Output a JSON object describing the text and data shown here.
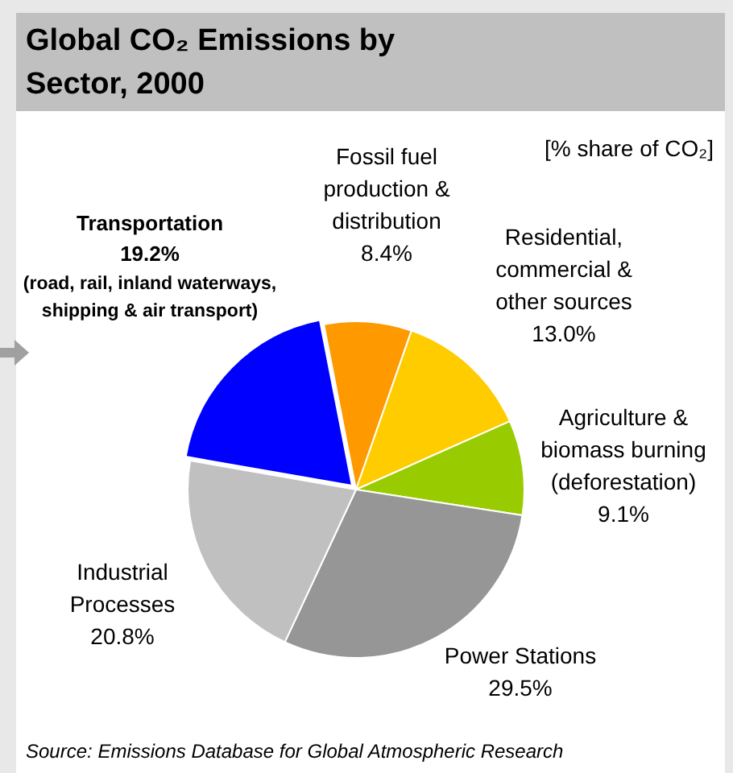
{
  "chart_data": {
    "type": "pie",
    "title": "Global CO₂ Emissions by Sector, 2000",
    "subtitle": "[% share of CO₂]",
    "categories": [
      "Fossil fuel production & distribution",
      "Residential, commercial & other sources",
      "Agriculture & biomass burning (deforestation)",
      "Power Stations",
      "Industrial Processes",
      "Transportation"
    ],
    "values": [
      8.4,
      13.0,
      9.1,
      29.5,
      20.8,
      19.2
    ],
    "value_labels": [
      "8.4%",
      "13.0%",
      "9.1%",
      "29.5%",
      "20.8%",
      "19.2%"
    ],
    "colors": [
      "#ff9900",
      "#ffcc00",
      "#99cc00",
      "#969696",
      "#c0c0c0",
      "#0000ff"
    ],
    "annotations": [
      "(road, rail, inland waterways, shipping & air transport)",
      "Source: Emissions Database for Global Atmospheric Research"
    ],
    "legend": false
  }
}
